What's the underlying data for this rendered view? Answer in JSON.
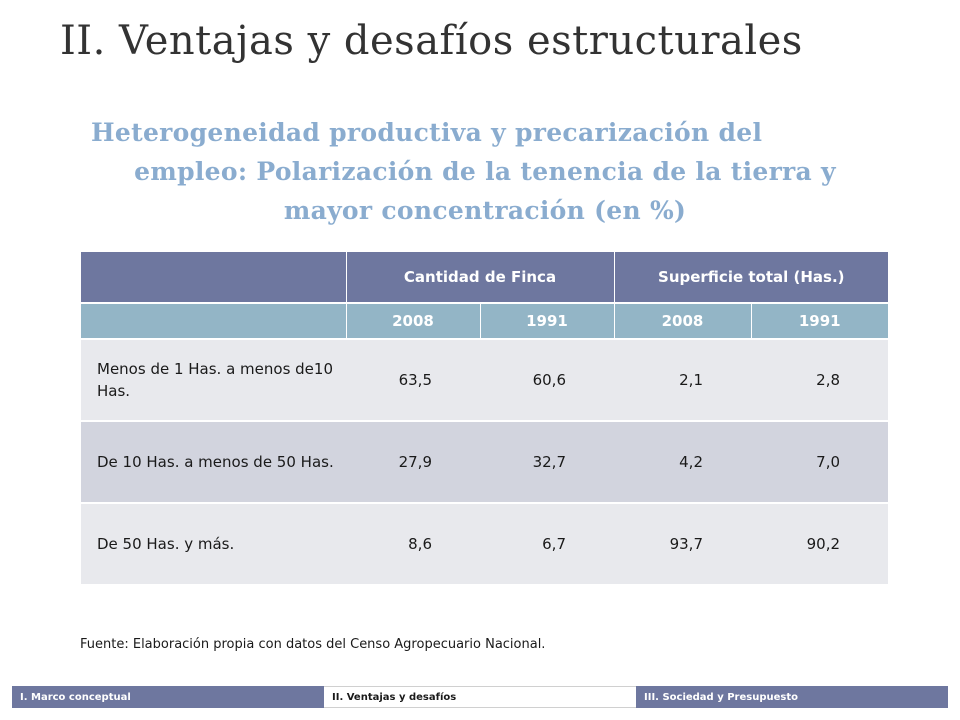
{
  "slide": {
    "title": "II. Ventajas y desafíos estructurales",
    "subtitle_line1": "Heterogeneidad productiva y precarización del",
    "subtitle_line2": "empleo: Polarización de la tenencia de la tierra y",
    "subtitle_line3": "mayor concentración (en %)"
  },
  "table": {
    "group_headers": [
      "",
      "Cantidad de Finca",
      "Superficie total (Has.)"
    ],
    "year_headers": [
      "",
      "2008",
      "1991",
      "2008",
      "1991"
    ],
    "rows": [
      {
        "label": "Menos de 1 Has. a menos de10 Has.",
        "values": [
          "63,5",
          "60,6",
          "2,1",
          "2,8"
        ]
      },
      {
        "label": "De 10 Has. a menos de 50 Has.",
        "values": [
          "27,9",
          "32,7",
          "4,2",
          "7,0"
        ]
      },
      {
        "label": "De 50 Has. y más.",
        "values": [
          "8,6",
          "6,7",
          "93,7",
          "90,2"
        ]
      }
    ]
  },
  "source": "Fuente: Elaboración propia con datos del Censo Agropecuario Nacional.",
  "footer_nav": {
    "items": [
      "I. Marco conceptual",
      "II. Ventajas y desafíos",
      "III. Sociedad y Presupuesto"
    ]
  },
  "colors": {
    "header_dark": "#6e779f",
    "header_light": "#93b5c6",
    "row_light": "#e8e9ed",
    "row_dark": "#d2d4de",
    "subtitle": "#8aaccf"
  }
}
